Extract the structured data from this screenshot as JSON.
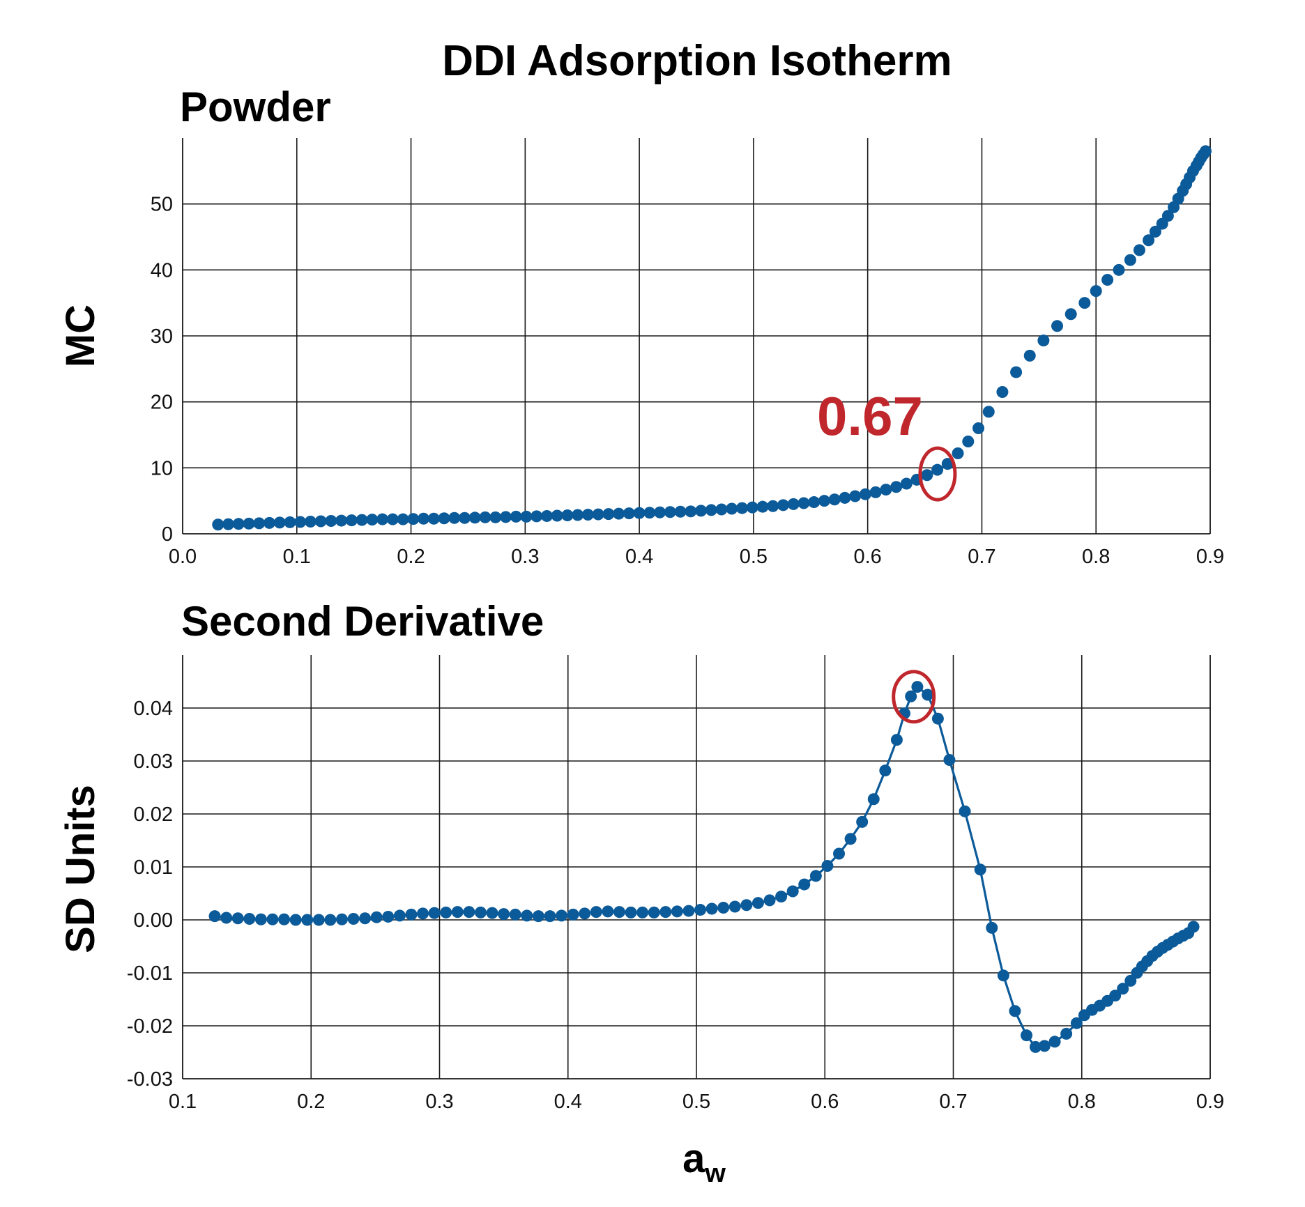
{
  "colors": {
    "marker": "#0b5a99",
    "line": "#0b5a99",
    "highlight": "#c0272d"
  },
  "chart_data": [
    {
      "type": "scatter",
      "title": "DDI Adsorption Isotherm",
      "subtitle": "Powder",
      "xlabel": "",
      "ylabel": "MC",
      "xlim": [
        0.0,
        0.9
      ],
      "ylim": [
        0,
        60
      ],
      "xticks": [
        "0.0",
        "0.1",
        "0.2",
        "0.3",
        "0.4",
        "0.5",
        "0.6",
        "0.7",
        "0.8",
        "0.9"
      ],
      "yticks": [
        "0",
        "10",
        "20",
        "30",
        "40",
        "50"
      ],
      "grid": true,
      "annotation": {
        "text": "0.67",
        "x": 0.66,
        "y": 9.5
      },
      "x": [
        0.031,
        0.04,
        0.049,
        0.058,
        0.067,
        0.076,
        0.085,
        0.094,
        0.103,
        0.112,
        0.121,
        0.13,
        0.139,
        0.148,
        0.157,
        0.166,
        0.175,
        0.184,
        0.193,
        0.202,
        0.211,
        0.22,
        0.229,
        0.238,
        0.247,
        0.256,
        0.265,
        0.274,
        0.283,
        0.292,
        0.301,
        0.31,
        0.319,
        0.328,
        0.337,
        0.346,
        0.355,
        0.364,
        0.373,
        0.382,
        0.391,
        0.4,
        0.409,
        0.418,
        0.427,
        0.436,
        0.445,
        0.454,
        0.463,
        0.472,
        0.481,
        0.49,
        0.499,
        0.508,
        0.517,
        0.526,
        0.535,
        0.544,
        0.553,
        0.562,
        0.571,
        0.58,
        0.589,
        0.598,
        0.607,
        0.616,
        0.625,
        0.634,
        0.643,
        0.652,
        0.661,
        0.67,
        0.679,
        0.688,
        0.697,
        0.706,
        0.718,
        0.73,
        0.742,
        0.754,
        0.766,
        0.778,
        0.79,
        0.8,
        0.81,
        0.82,
        0.83,
        0.838,
        0.846,
        0.852,
        0.858,
        0.863,
        0.868,
        0.872,
        0.876,
        0.879,
        0.882,
        0.885,
        0.888,
        0.89,
        0.892,
        0.894,
        0.896
      ],
      "y": [
        1.4,
        1.45,
        1.5,
        1.55,
        1.6,
        1.65,
        1.7,
        1.75,
        1.8,
        1.85,
        1.9,
        1.95,
        2.0,
        2.05,
        2.1,
        2.15,
        2.2,
        2.2,
        2.2,
        2.25,
        2.3,
        2.3,
        2.35,
        2.4,
        2.4,
        2.45,
        2.5,
        2.5,
        2.55,
        2.6,
        2.6,
        2.65,
        2.7,
        2.75,
        2.8,
        2.85,
        2.9,
        2.95,
        3.0,
        3.05,
        3.1,
        3.15,
        3.2,
        3.25,
        3.3,
        3.35,
        3.4,
        3.5,
        3.6,
        3.7,
        3.8,
        3.9,
        4.0,
        4.1,
        4.2,
        4.35,
        4.5,
        4.65,
        4.8,
        5.0,
        5.2,
        5.45,
        5.7,
        6.0,
        6.3,
        6.7,
        7.1,
        7.6,
        8.2,
        8.9,
        9.7,
        10.6,
        12.2,
        14.0,
        16.0,
        18.5,
        21.5,
        24.5,
        27.0,
        29.3,
        31.5,
        33.3,
        35.0,
        36.8,
        38.5,
        40.0,
        41.5,
        43.0,
        44.5,
        45.8,
        47.0,
        48.2,
        49.5,
        50.8,
        52.0,
        53.0,
        54.0,
        55.0,
        55.8,
        56.4,
        57.0,
        57.5,
        58.0
      ]
    },
    {
      "type": "line",
      "subtitle": "Second Derivative",
      "xlabel": "aw",
      "ylabel": "SD Units",
      "xlim": [
        0.1,
        0.9
      ],
      "ylim": [
        -0.03,
        0.05
      ],
      "xticks": [
        "0.1",
        "0.2",
        "0.3",
        "0.4",
        "0.5",
        "0.6",
        "0.7",
        "0.8",
        "0.9"
      ],
      "yticks": [
        "-0.03",
        "-0.02",
        "-0.01",
        "0.00",
        "0.01",
        "0.02",
        "0.03",
        "0.04"
      ],
      "grid": true,
      "highlight_x": 0.667,
      "x": [
        0.125,
        0.134,
        0.143,
        0.152,
        0.161,
        0.17,
        0.179,
        0.188,
        0.197,
        0.206,
        0.215,
        0.224,
        0.233,
        0.242,
        0.251,
        0.26,
        0.269,
        0.278,
        0.287,
        0.296,
        0.305,
        0.314,
        0.323,
        0.332,
        0.341,
        0.35,
        0.359,
        0.368,
        0.377,
        0.386,
        0.395,
        0.404,
        0.413,
        0.422,
        0.431,
        0.44,
        0.449,
        0.458,
        0.467,
        0.476,
        0.485,
        0.494,
        0.503,
        0.512,
        0.521,
        0.53,
        0.539,
        0.548,
        0.557,
        0.566,
        0.575,
        0.584,
        0.593,
        0.602,
        0.611,
        0.62,
        0.629,
        0.638,
        0.647,
        0.656,
        0.662,
        0.667,
        0.672,
        0.68,
        0.688,
        0.697,
        0.709,
        0.721,
        0.73,
        0.739,
        0.748,
        0.757,
        0.764,
        0.771,
        0.779,
        0.788,
        0.796,
        0.802,
        0.808,
        0.814,
        0.82,
        0.826,
        0.832,
        0.838,
        0.843,
        0.847,
        0.851,
        0.855,
        0.859,
        0.863,
        0.867,
        0.871,
        0.875,
        0.879,
        0.883,
        0.887
      ],
      "y": [
        0.0007,
        0.0004,
        0.0003,
        0.0002,
        0.0001,
        0.0001,
        0.0001,
        0.0,
        0.0,
        0.0,
        0.0,
        0.0001,
        0.0002,
        0.0003,
        0.0005,
        0.0006,
        0.0008,
        0.001,
        0.0012,
        0.0013,
        0.0014,
        0.0015,
        0.0015,
        0.0014,
        0.0013,
        0.0011,
        0.001,
        0.0008,
        0.0007,
        0.0007,
        0.0008,
        0.001,
        0.0012,
        0.0015,
        0.0016,
        0.0015,
        0.0014,
        0.0014,
        0.0014,
        0.0015,
        0.0016,
        0.0017,
        0.0019,
        0.0021,
        0.0023,
        0.0025,
        0.0028,
        0.0032,
        0.0037,
        0.0044,
        0.0054,
        0.0067,
        0.0083,
        0.0102,
        0.0125,
        0.0153,
        0.0185,
        0.0228,
        0.0282,
        0.034,
        0.039,
        0.0422,
        0.044,
        0.0425,
        0.038,
        0.0302,
        0.0205,
        0.0095,
        -0.0015,
        -0.0105,
        -0.0172,
        -0.0218,
        -0.024,
        -0.0238,
        -0.023,
        -0.0215,
        -0.0195,
        -0.018,
        -0.017,
        -0.0162,
        -0.0153,
        -0.0143,
        -0.013,
        -0.0115,
        -0.01,
        -0.0088,
        -0.0078,
        -0.0068,
        -0.006,
        -0.0053,
        -0.0047,
        -0.0041,
        -0.0035,
        -0.003,
        -0.0025,
        -0.0013
      ]
    }
  ]
}
